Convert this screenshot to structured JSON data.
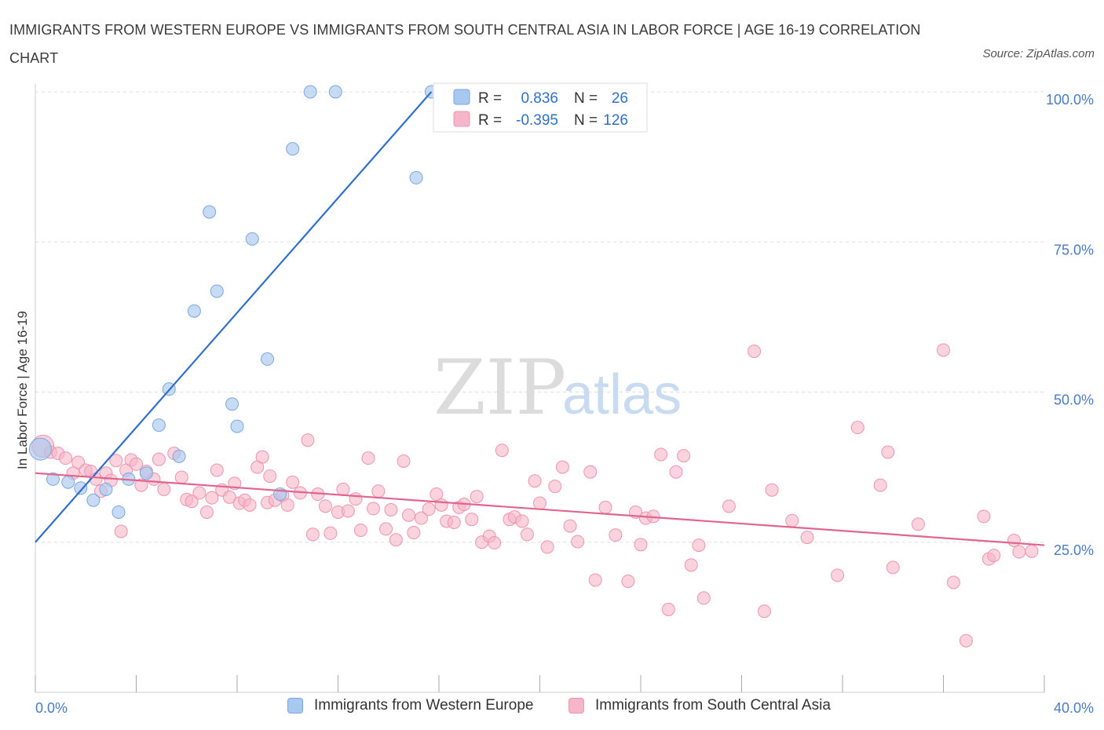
{
  "title": "IMMIGRANTS FROM WESTERN EUROPE VS IMMIGRANTS FROM SOUTH CENTRAL ASIA IN LABOR FORCE | AGE 16-19 CORRELATION CHART",
  "source": "Source: ZipAtlas.com",
  "watermark": {
    "zip": "ZIP",
    "atlas": "atlas"
  },
  "colors": {
    "blue_fill": "#a9c8f0",
    "blue_stroke": "#7aa7e0",
    "blue_line": "#2f6fce",
    "pink_fill": "#f6b6c9",
    "pink_stroke": "#ee94b0",
    "pink_line": "#e0668f",
    "tick_text": "#4a7bc8",
    "grid": "#dddddd"
  },
  "legend": {
    "rows": [
      {
        "r_label": "R =",
        "r_value": "0.836",
        "n_label": "N =",
        "n_value": "26"
      },
      {
        "r_label": "R =",
        "r_value": "-0.395",
        "n_label": "N =",
        "n_value": "126"
      }
    ]
  },
  "bottom_legend": {
    "blue_label": "Immigrants from Western Europe",
    "pink_label": "Immigrants from South Central Asia"
  },
  "chart_data": {
    "type": "scatter",
    "title": "IMMIGRANTS FROM WESTERN EUROPE VS IMMIGRANTS FROM SOUTH CENTRAL ASIA IN LABOR FORCE | AGE 16-19 CORRELATION CHART",
    "xlabel": "",
    "ylabel": "In Labor Force | Age 16-19",
    "xlim": [
      0,
      40
    ],
    "ylim": [
      0,
      100
    ],
    "x_tick_labels": [
      "0.0%",
      "40.0%"
    ],
    "y_ticks": [
      {
        "value": 25,
        "label": "25.0%"
      },
      {
        "value": 50,
        "label": "50.0%"
      },
      {
        "value": 75,
        "label": "75.0%"
      },
      {
        "value": 100,
        "label": "100.0%"
      }
    ],
    "grid": "horizontal dashed",
    "legend_placement": "top-center",
    "series": [
      {
        "name": "Immigrants from Western Europe",
        "R": 0.836,
        "N": 26,
        "trend": {
          "x": [
            0,
            15.7
          ],
          "y": [
            25,
            100
          ]
        },
        "points": [
          {
            "x": 0.2,
            "y": 40.5,
            "big": true
          },
          {
            "x": 0.7,
            "y": 35.5
          },
          {
            "x": 1.3,
            "y": 35
          },
          {
            "x": 1.8,
            "y": 34
          },
          {
            "x": 2.3,
            "y": 32
          },
          {
            "x": 2.8,
            "y": 33.8
          },
          {
            "x": 3.3,
            "y": 30
          },
          {
            "x": 3.7,
            "y": 35.5
          },
          {
            "x": 4.4,
            "y": 36.5
          },
          {
            "x": 4.9,
            "y": 44.5
          },
          {
            "x": 5.3,
            "y": 50.5
          },
          {
            "x": 5.7,
            "y": 39.3
          },
          {
            "x": 6.3,
            "y": 63.5
          },
          {
            "x": 6.9,
            "y": 80
          },
          {
            "x": 7.2,
            "y": 66.8
          },
          {
            "x": 7.8,
            "y": 48
          },
          {
            "x": 8.0,
            "y": 44.3
          },
          {
            "x": 8.6,
            "y": 75.5
          },
          {
            "x": 9.2,
            "y": 55.5
          },
          {
            "x": 9.7,
            "y": 33
          },
          {
            "x": 10.2,
            "y": 90.5
          },
          {
            "x": 10.9,
            "y": 100
          },
          {
            "x": 11.9,
            "y": 100
          },
          {
            "x": 15.1,
            "y": 85.7
          },
          {
            "x": 15.7,
            "y": 100
          },
          {
            "x": 16.5,
            "y": 100
          }
        ]
      },
      {
        "name": "Immigrants from South Central Asia",
        "R": -0.395,
        "N": 126,
        "trend": {
          "x": [
            0,
            40
          ],
          "y": [
            36.5,
            24.5
          ]
        },
        "points": [
          {
            "x": 0.3,
            "y": 41,
            "big": true
          },
          {
            "x": 0.6,
            "y": 40
          },
          {
            "x": 0.9,
            "y": 39.8
          },
          {
            "x": 1.2,
            "y": 39
          },
          {
            "x": 1.5,
            "y": 36.5
          },
          {
            "x": 1.7,
            "y": 38.3
          },
          {
            "x": 2.0,
            "y": 37
          },
          {
            "x": 2.2,
            "y": 36.8
          },
          {
            "x": 2.4,
            "y": 35.5
          },
          {
            "x": 2.6,
            "y": 33.5
          },
          {
            "x": 2.8,
            "y": 36.5
          },
          {
            "x": 3.0,
            "y": 35.3
          },
          {
            "x": 3.2,
            "y": 38.6
          },
          {
            "x": 3.4,
            "y": 26.8
          },
          {
            "x": 3.6,
            "y": 37
          },
          {
            "x": 3.8,
            "y": 38.7
          },
          {
            "x": 4.0,
            "y": 38
          },
          {
            "x": 4.2,
            "y": 34.5
          },
          {
            "x": 4.4,
            "y": 36.8
          },
          {
            "x": 4.7,
            "y": 35.5
          },
          {
            "x": 4.9,
            "y": 38.8
          },
          {
            "x": 5.1,
            "y": 33.8
          },
          {
            "x": 5.5,
            "y": 39.8
          },
          {
            "x": 5.8,
            "y": 35.8
          },
          {
            "x": 6.0,
            "y": 32.1
          },
          {
            "x": 6.2,
            "y": 31.8
          },
          {
            "x": 6.5,
            "y": 33.2
          },
          {
            "x": 6.8,
            "y": 30
          },
          {
            "x": 7.0,
            "y": 32.4
          },
          {
            "x": 7.2,
            "y": 37
          },
          {
            "x": 7.4,
            "y": 33.7
          },
          {
            "x": 7.7,
            "y": 32.5
          },
          {
            "x": 7.9,
            "y": 34.8
          },
          {
            "x": 8.1,
            "y": 31.5
          },
          {
            "x": 8.3,
            "y": 32
          },
          {
            "x": 8.5,
            "y": 31.2
          },
          {
            "x": 8.8,
            "y": 37.5
          },
          {
            "x": 9.0,
            "y": 39.2
          },
          {
            "x": 9.2,
            "y": 31.6
          },
          {
            "x": 9.5,
            "y": 32
          },
          {
            "x": 9.8,
            "y": 32.8
          },
          {
            "x": 10.0,
            "y": 31.2
          },
          {
            "x": 10.2,
            "y": 35
          },
          {
            "x": 10.5,
            "y": 33.2
          },
          {
            "x": 10.8,
            "y": 42
          },
          {
            "x": 11.0,
            "y": 26.3
          },
          {
            "x": 11.2,
            "y": 33
          },
          {
            "x": 11.5,
            "y": 31
          },
          {
            "x": 11.7,
            "y": 26.5
          },
          {
            "x": 12.0,
            "y": 30
          },
          {
            "x": 12.2,
            "y": 33.8
          },
          {
            "x": 12.4,
            "y": 30.2
          },
          {
            "x": 12.7,
            "y": 32.2
          },
          {
            "x": 12.9,
            "y": 27
          },
          {
            "x": 13.2,
            "y": 39
          },
          {
            "x": 13.4,
            "y": 30.6
          },
          {
            "x": 13.6,
            "y": 33.5
          },
          {
            "x": 13.9,
            "y": 27.2
          },
          {
            "x": 14.1,
            "y": 30.4
          },
          {
            "x": 14.3,
            "y": 25.4
          },
          {
            "x": 14.6,
            "y": 38.5
          },
          {
            "x": 14.8,
            "y": 29.5
          },
          {
            "x": 15.0,
            "y": 26.6
          },
          {
            "x": 15.3,
            "y": 29
          },
          {
            "x": 15.6,
            "y": 30.5
          },
          {
            "x": 15.9,
            "y": 33
          },
          {
            "x": 16.1,
            "y": 31.2
          },
          {
            "x": 16.3,
            "y": 28.5
          },
          {
            "x": 16.6,
            "y": 28.3
          },
          {
            "x": 16.8,
            "y": 30.8
          },
          {
            "x": 17.0,
            "y": 31.3
          },
          {
            "x": 17.3,
            "y": 28.8
          },
          {
            "x": 17.5,
            "y": 32.6
          },
          {
            "x": 17.7,
            "y": 25
          },
          {
            "x": 18.0,
            "y": 26
          },
          {
            "x": 18.2,
            "y": 24.9
          },
          {
            "x": 18.5,
            "y": 40.3
          },
          {
            "x": 18.8,
            "y": 28.8
          },
          {
            "x": 19.0,
            "y": 29.2
          },
          {
            "x": 19.3,
            "y": 28.5
          },
          {
            "x": 19.5,
            "y": 26.3
          },
          {
            "x": 19.8,
            "y": 35.2
          },
          {
            "x": 20.0,
            "y": 31.5
          },
          {
            "x": 20.3,
            "y": 24.2
          },
          {
            "x": 20.6,
            "y": 34.3
          },
          {
            "x": 20.9,
            "y": 37.5
          },
          {
            "x": 21.2,
            "y": 27.7
          },
          {
            "x": 21.5,
            "y": 25.1
          },
          {
            "x": 22.0,
            "y": 36.7
          },
          {
            "x": 22.2,
            "y": 18.7
          },
          {
            "x": 23.0,
            "y": 26.2
          },
          {
            "x": 23.5,
            "y": 18.5
          },
          {
            "x": 23.8,
            "y": 30
          },
          {
            "x": 24.2,
            "y": 29
          },
          {
            "x": 24.5,
            "y": 29.3
          },
          {
            "x": 24.0,
            "y": 24.6
          },
          {
            "x": 24.8,
            "y": 39.6
          },
          {
            "x": 25.1,
            "y": 13.8
          },
          {
            "x": 25.4,
            "y": 36.7
          },
          {
            "x": 25.7,
            "y": 39.4
          },
          {
            "x": 26.0,
            "y": 21.2
          },
          {
            "x": 26.3,
            "y": 24.5
          },
          {
            "x": 26.5,
            "y": 15.7
          },
          {
            "x": 28.5,
            "y": 56.8
          },
          {
            "x": 28.9,
            "y": 13.5
          },
          {
            "x": 29.2,
            "y": 33.7
          },
          {
            "x": 30.6,
            "y": 25.8
          },
          {
            "x": 31.8,
            "y": 19.5
          },
          {
            "x": 32.6,
            "y": 44.1
          },
          {
            "x": 33.5,
            "y": 34.5
          },
          {
            "x": 33.8,
            "y": 40
          },
          {
            "x": 34.0,
            "y": 20.8
          },
          {
            "x": 36.0,
            "y": 57
          },
          {
            "x": 36.4,
            "y": 18.3
          },
          {
            "x": 36.9,
            "y": 8.6
          },
          {
            "x": 37.6,
            "y": 29.3
          },
          {
            "x": 37.8,
            "y": 22.2
          },
          {
            "x": 38.0,
            "y": 22.8
          },
          {
            "x": 38.8,
            "y": 25.3
          },
          {
            "x": 39.0,
            "y": 23.4
          },
          {
            "x": 39.5,
            "y": 23.5
          },
          {
            "x": 35.0,
            "y": 28.0
          },
          {
            "x": 27.5,
            "y": 31.0
          },
          {
            "x": 30.0,
            "y": 28.6
          },
          {
            "x": 22.6,
            "y": 30.8
          },
          {
            "x": 9.3,
            "y": 36.0
          }
        ]
      }
    ]
  }
}
